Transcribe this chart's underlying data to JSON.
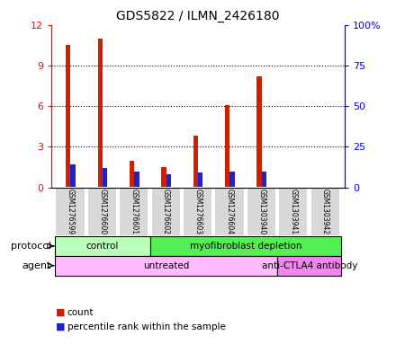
{
  "title": "GDS5822 / ILMN_2426180",
  "samples": [
    "GSM1276599",
    "GSM1276600",
    "GSM1276601",
    "GSM1276602",
    "GSM1276603",
    "GSM1276604",
    "GSM1303940",
    "GSM1303941",
    "GSM1303942"
  ],
  "count_values": [
    10.5,
    11.0,
    2.0,
    1.5,
    3.8,
    6.1,
    8.2,
    0,
    0
  ],
  "percentile_values": [
    14.0,
    12.0,
    9.5,
    8.0,
    9.0,
    10.0,
    9.5,
    0,
    0
  ],
  "ylim_left": [
    0,
    12
  ],
  "ylim_right": [
    0,
    100
  ],
  "yticks_left": [
    0,
    3,
    6,
    9,
    12
  ],
  "ytick_labels_left": [
    "0",
    "3",
    "6",
    "9",
    "12"
  ],
  "yticks_right": [
    0,
    25,
    50,
    75,
    100
  ],
  "ytick_labels_right": [
    "0",
    "25",
    "50",
    "75",
    "100%"
  ],
  "bar_color_count": "#cc2200",
  "bar_color_percentile": "#2222cc",
  "protocol_groups": [
    {
      "label": "control",
      "start": 0,
      "end": 3,
      "color": "#bbffbb"
    },
    {
      "label": "myofibroblast depletion",
      "start": 3,
      "end": 9,
      "color": "#55ee55"
    }
  ],
  "agent_groups": [
    {
      "label": "untreated",
      "start": 0,
      "end": 7,
      "color": "#ffbbff"
    },
    {
      "label": "anti-CTLA4 antibody",
      "start": 7,
      "end": 9,
      "color": "#ee88ee"
    }
  ],
  "legend_count_label": "count",
  "legend_percentile_label": "percentile rank within the sample",
  "background_color": "#ffffff"
}
